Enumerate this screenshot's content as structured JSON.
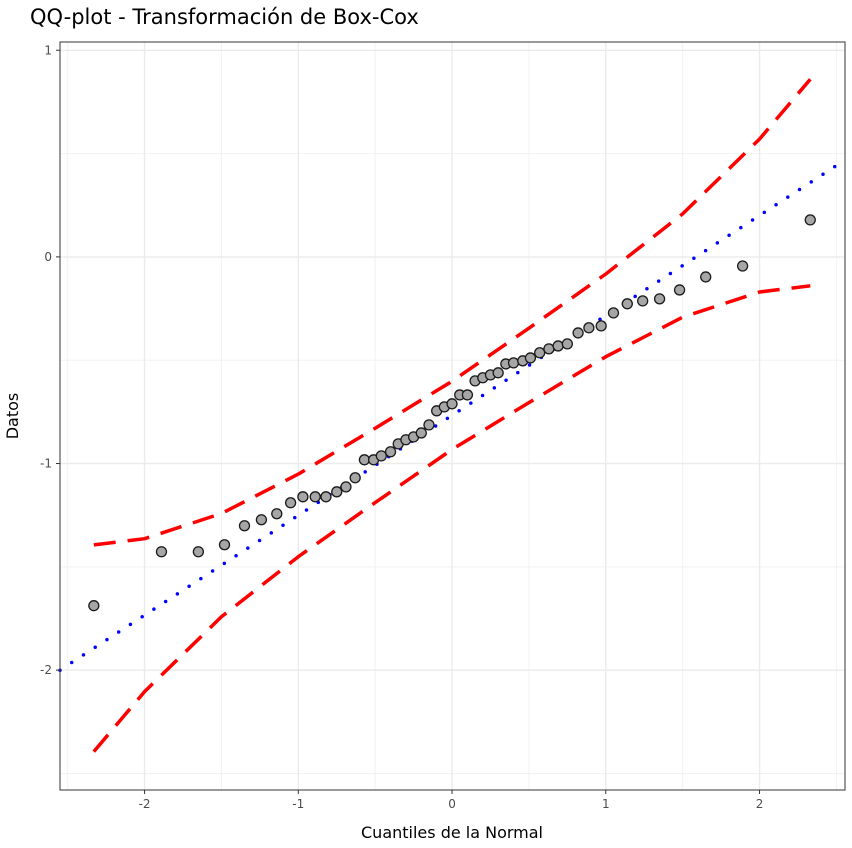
{
  "chart_data": {
    "type": "scatter",
    "title": "QQ-plot - Transformación de Box-Cox",
    "xlabel": "Cuantiles de la Normal",
    "ylabel": "Datos",
    "xlim": [
      -2.55,
      2.556
    ],
    "ylim": [
      -2.58,
      1.04
    ],
    "grid": true,
    "xticks": [
      {
        "v": -2,
        "label": "-2"
      },
      {
        "v": -1,
        "label": "-1"
      },
      {
        "v": 0,
        "label": "0"
      },
      {
        "v": 1,
        "label": "1"
      },
      {
        "v": 2,
        "label": "2"
      }
    ],
    "yticks": [
      {
        "v": -2,
        "label": "-2"
      },
      {
        "v": -1,
        "label": "-1"
      },
      {
        "v": 0,
        "label": "0"
      },
      {
        "v": 1,
        "label": "1"
      }
    ],
    "points": {
      "x": [
        -2.33,
        -1.89,
        -1.65,
        -1.48,
        -1.35,
        -1.24,
        -1.14,
        -1.05,
        -0.97,
        -0.89,
        -0.82,
        -0.75,
        -0.69,
        -0.63,
        -0.57,
        -0.51,
        -0.46,
        -0.4,
        -0.35,
        -0.3,
        -0.25,
        -0.2,
        -0.15,
        -0.1,
        -0.05,
        0.0,
        0.05,
        0.1,
        0.15,
        0.2,
        0.25,
        0.3,
        0.35,
        0.4,
        0.46,
        0.51,
        0.57,
        0.63,
        0.69,
        0.75,
        0.82,
        0.89,
        0.97,
        1.05,
        1.14,
        1.24,
        1.35,
        1.48,
        1.65,
        1.89,
        2.33
      ],
      "y": [
        -1.688,
        -1.427,
        -1.427,
        -1.393,
        -1.301,
        -1.272,
        -1.243,
        -1.19,
        -1.161,
        -1.161,
        -1.161,
        -1.137,
        -1.113,
        -1.069,
        -0.982,
        -0.982,
        -0.963,
        -0.943,
        -0.905,
        -0.885,
        -0.871,
        -0.852,
        -0.813,
        -0.745,
        -0.726,
        -0.711,
        -0.668,
        -0.668,
        -0.6,
        -0.585,
        -0.571,
        -0.561,
        -0.518,
        -0.513,
        -0.503,
        -0.489,
        -0.464,
        -0.445,
        -0.431,
        -0.421,
        -0.368,
        -0.343,
        -0.334,
        -0.271,
        -0.227,
        -0.213,
        -0.203,
        -0.16,
        -0.097,
        -0.044,
        0.179
      ],
      "fill": "#a6a6a6",
      "stroke": "#1a1a1a"
    },
    "reference_line": {
      "intercept": -0.767,
      "slope": 0.4836,
      "color": "#0000ff",
      "style": "dotted"
    },
    "envelope": {
      "x": [
        -2.33,
        -2,
        -1.5,
        -1,
        -0.5,
        0,
        0.5,
        1,
        1.5,
        2,
        2.33
      ],
      "upper": [
        -1.394,
        -1.364,
        -1.242,
        -1.051,
        -0.829,
        -0.602,
        -0.345,
        -0.083,
        0.208,
        0.57,
        0.86
      ],
      "lower": [
        -2.394,
        -2.104,
        -1.742,
        -1.451,
        -1.189,
        -0.932,
        -0.705,
        -0.483,
        -0.292,
        -0.17,
        -0.14
      ],
      "color": "#ff0000",
      "style": "dashed"
    }
  }
}
